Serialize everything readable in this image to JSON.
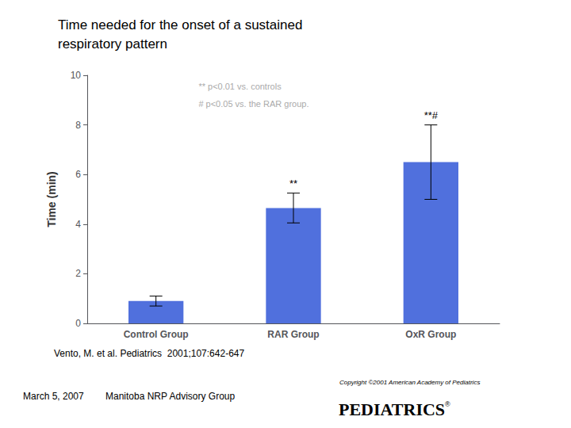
{
  "chart_data": {
    "type": "bar",
    "title": "Time needed for the onset of a sustained\nrespiratory pattern",
    "categories": [
      "Control Group",
      "RAR Group",
      "OxR Group"
    ],
    "values": [
      0.9,
      4.65,
      6.5
    ],
    "errors": [
      0.2,
      0.6,
      1.5
    ],
    "ylabel": "Time (min)",
    "ylim": [
      0,
      10
    ],
    "yticks": [
      0,
      2,
      4,
      6,
      8,
      10
    ],
    "grid": false,
    "annotations": [
      {
        "category": "RAR Group",
        "text": "**"
      },
      {
        "category": "OxR Group",
        "text": "**#"
      }
    ],
    "footnotes": [
      "** p<0.01 vs. controls",
      "# p<0.05 vs. the RAR group."
    ],
    "citation": "Vento, M. et al. Pediatrics  2001;107:642-647",
    "footer": [
      "March 5, 2007",
      "Manitoba NRP Advisory Group"
    ],
    "copyright": "Copyright ©2001 American Academy of Pediatrics",
    "logo": "PEDIATRICS",
    "logo_mark": "®"
  }
}
